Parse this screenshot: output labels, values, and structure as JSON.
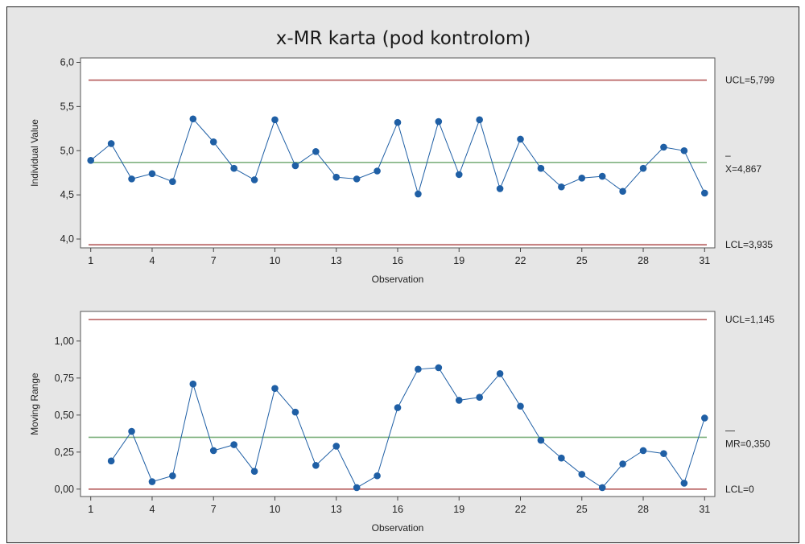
{
  "title": "x-MR karta (pod kontrolom)",
  "colors": {
    "background": "#e6e6e6",
    "plot_background": "#ffffff",
    "series": "#1f5fa5",
    "control_limit": "#b55a5a",
    "center_line": "#7fb27f",
    "border": "#1f1f1f"
  },
  "chart_data": [
    {
      "type": "line",
      "title": "",
      "xlabel": "Observation",
      "ylabel": "Individual Value",
      "ylim": [
        3.9,
        6.05
      ],
      "xlim": [
        0.5,
        31.5
      ],
      "yticks": [
        4.0,
        4.5,
        5.0,
        5.5,
        6.0
      ],
      "ytick_labels": [
        "4,0",
        "4,5",
        "5,0",
        "5,5",
        "6,0"
      ],
      "xticks": [
        1,
        4,
        7,
        10,
        13,
        16,
        19,
        22,
        25,
        28,
        31
      ],
      "xtick_labels": [
        "1",
        "4",
        "7",
        "10",
        "13",
        "16",
        "19",
        "22",
        "25",
        "28",
        "31"
      ],
      "x": [
        1,
        2,
        3,
        4,
        5,
        6,
        7,
        8,
        9,
        10,
        11,
        12,
        13,
        14,
        15,
        16,
        17,
        18,
        19,
        20,
        21,
        22,
        23,
        24,
        25,
        26,
        27,
        28,
        29,
        30,
        31
      ],
      "series": [
        {
          "values": [
            4.89,
            5.08,
            4.68,
            4.74,
            4.65,
            5.36,
            5.1,
            4.8,
            4.67,
            5.35,
            4.83,
            4.99,
            4.7,
            4.68,
            4.77,
            5.32,
            4.51,
            5.33,
            4.73,
            5.35,
            4.57,
            5.13,
            4.8,
            4.59,
            4.69,
            4.71,
            4.54,
            4.8,
            5.04,
            5.0,
            4.52
          ]
        }
      ],
      "limits": [
        {
          "key": "ucl",
          "value": 5.799,
          "label": "UCL=5,799"
        },
        {
          "key": "center",
          "value": 4.867,
          "label": "X=4,867",
          "bar": "–"
        },
        {
          "key": "lcl",
          "value": 3.935,
          "label": "LCL=3,935"
        }
      ],
      "grid": false
    },
    {
      "type": "line",
      "title": "",
      "xlabel": "Observation",
      "ylabel": "Moving Range",
      "ylim": [
        -0.05,
        1.2
      ],
      "xlim": [
        0.5,
        31.5
      ],
      "yticks": [
        0.0,
        0.25,
        0.5,
        0.75,
        1.0
      ],
      "ytick_labels": [
        "0,00",
        "0,25",
        "0,50",
        "0,75",
        "1,00"
      ],
      "xticks": [
        1,
        4,
        7,
        10,
        13,
        16,
        19,
        22,
        25,
        28,
        31
      ],
      "xtick_labels": [
        "1",
        "4",
        "7",
        "10",
        "13",
        "16",
        "19",
        "22",
        "25",
        "28",
        "31"
      ],
      "x": [
        2,
        3,
        4,
        5,
        6,
        7,
        8,
        9,
        10,
        11,
        12,
        13,
        14,
        15,
        16,
        17,
        18,
        19,
        20,
        21,
        22,
        23,
        24,
        25,
        26,
        27,
        28,
        29,
        30,
        31
      ],
      "series": [
        {
          "values": [
            0.19,
            0.39,
            0.05,
            0.09,
            0.71,
            0.26,
            0.3,
            0.12,
            0.68,
            0.52,
            0.16,
            0.29,
            0.01,
            0.09,
            0.55,
            0.81,
            0.82,
            0.6,
            0.62,
            0.78,
            0.56,
            0.33,
            0.21,
            0.1,
            0.01,
            0.17,
            0.26,
            0.24,
            0.04,
            0.48
          ]
        }
      ],
      "limits": [
        {
          "key": "ucl",
          "value": 1.145,
          "label": "UCL=1,145"
        },
        {
          "key": "center",
          "value": 0.35,
          "label": "MR=0,350",
          "bar": "—"
        },
        {
          "key": "lcl",
          "value": 0.0,
          "label": "LCL=0"
        }
      ],
      "grid": false
    }
  ]
}
